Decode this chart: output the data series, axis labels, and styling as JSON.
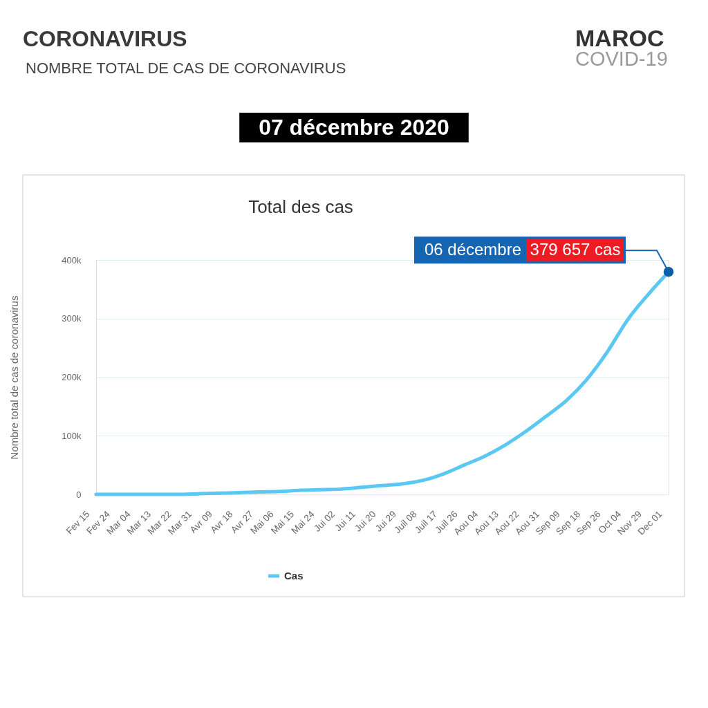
{
  "chart_data": {
    "type": "line",
    "title": "CORONAVIRUS",
    "subtitle": "NOMBRE TOTAL DE CAS DE CORONAVIRUS",
    "ylabel": "Nombre total de cas de coronavirus",
    "annotations": [
      "MAROC",
      "COVID-19",
      "07 décembre 2020",
      "Total des cas",
      "06 décembre",
      {
        "text": "379 657 cas",
        "x": "Dec 01",
        "y": 379657
      }
    ],
    "categories": [
      "Fev 15",
      "Fev 24",
      "Mar 04",
      "Mar 13",
      "Mar 22",
      "Mar 31",
      "Avr 09",
      "Avr 18",
      "Avr 27",
      "Mai 06",
      "Mai 15",
      "Mai 24",
      "Jui 02",
      "Jui 11",
      "Jui 20",
      "Jui 29",
      "Juil 08",
      "Juil 17",
      "Juil 26",
      "Aou 04",
      "Aou 13",
      "Aou 22",
      "Aou 31",
      "Sep 09",
      "Sep 18",
      "Sep 26",
      "Oct 04",
      "Nov 29",
      "Dec 01"
    ],
    "series": [
      {
        "name": "Cas",
        "color": "#5bc8f4",
        "values": [
          0,
          0,
          0,
          0,
          0,
          1000,
          2000,
          3000,
          4000,
          5000,
          7000,
          8000,
          9000,
          12000,
          15000,
          18000,
          24000,
          35000,
          50000,
          65000,
          84000,
          107000,
          133000,
          160000,
          196000,
          243000,
          298000,
          341000,
          379657
        ]
      }
    ],
    "ylim": [
      0,
      400000
    ],
    "yticks": [
      0,
      {
        "value": 100000,
        "label": "100k"
      },
      {
        "value": 200000,
        "label": "200k"
      },
      {
        "value": 300000,
        "label": "300k"
      },
      {
        "value": 400000,
        "label": "400k"
      }
    ],
    "grid": "y",
    "legend": "bottom"
  }
}
